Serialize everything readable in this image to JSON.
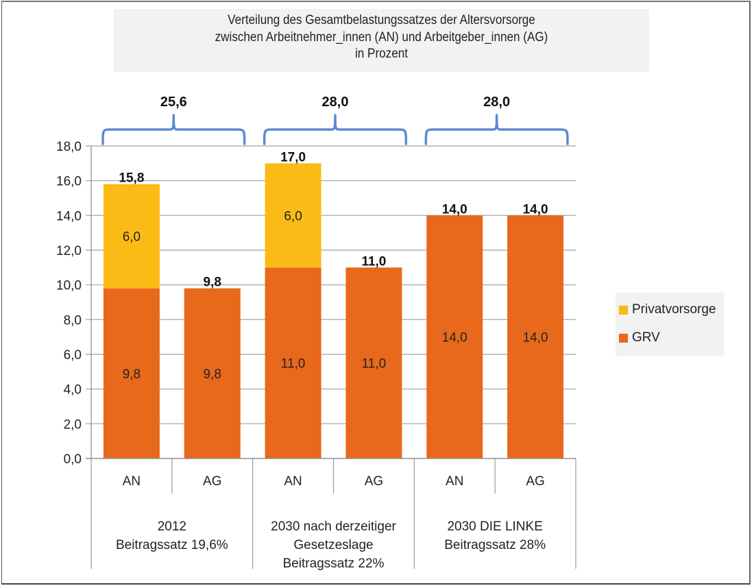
{
  "chart_data": {
    "type": "bar",
    "stacked": true,
    "title": "Verteilung des Gesamtbelastungssatzes der Altersvorsorge zwischen Arbeitnehmer_innen (AN) und Arbeitgeber_innen (AG) in Prozent",
    "title_lines": [
      "Verteilung des Gesamtbelastungssatzes der Altersvorsorge",
      "zwischen Arbeitnehmer_innen (AN) und Arbeitgeber_innen (AG)",
      "in Prozent"
    ],
    "xlabel": "",
    "ylabel": "",
    "ylim": [
      0,
      18
    ],
    "ytick_step": 2,
    "ytick_labels": [
      "0,0",
      "2,0",
      "4,0",
      "6,0",
      "8,0",
      "10,0",
      "12,0",
      "14,0",
      "16,0",
      "18,0"
    ],
    "grid": true,
    "legend_position": "right",
    "categories": [
      "AN",
      "AG",
      "AN",
      "AG",
      "AN",
      "AG"
    ],
    "groups": [
      {
        "label_lines": [
          "2012",
          "Beitragssatz 19,6%"
        ],
        "members": [
          0,
          1
        ],
        "total_label": "25,6",
        "total": 25.6
      },
      {
        "label_lines": [
          "2030 nach derzeitiger",
          "Gesetzeslage",
          "Beitragssatz 22%"
        ],
        "members": [
          2,
          3
        ],
        "total_label": "28,0",
        "total": 28.0
      },
      {
        "label_lines": [
          "2030 DIE LINKE",
          "Beitragssatz 28%"
        ],
        "members": [
          4,
          5
        ],
        "total_label": "28,0",
        "total": 28.0
      }
    ],
    "series": [
      {
        "name": "GRV",
        "color": "#e8691c",
        "values": [
          9.8,
          9.8,
          11.0,
          11.0,
          14.0,
          14.0
        ],
        "labels": [
          "9,8",
          "9,8",
          "11,0",
          "11,0",
          "14,0",
          "14,0"
        ]
      },
      {
        "name": "Privatvorsorge",
        "color": "#fbbb16",
        "values": [
          6.0,
          0,
          6.0,
          0,
          0,
          0
        ],
        "labels": [
          "6,0",
          "",
          "6,0",
          "",
          "",
          ""
        ]
      }
    ],
    "totals": [
      15.8,
      9.8,
      17.0,
      11.0,
      14.0,
      14.0
    ],
    "total_labels": [
      "15,8",
      "9,8",
      "17,0",
      "11,0",
      "14,0",
      "14,0"
    ],
    "legend": [
      {
        "name": "Privatvorsorge",
        "color": "#fbbb16"
      },
      {
        "name": "GRV",
        "color": "#e8691c"
      }
    ],
    "brace_color": "#5b8bd0"
  }
}
